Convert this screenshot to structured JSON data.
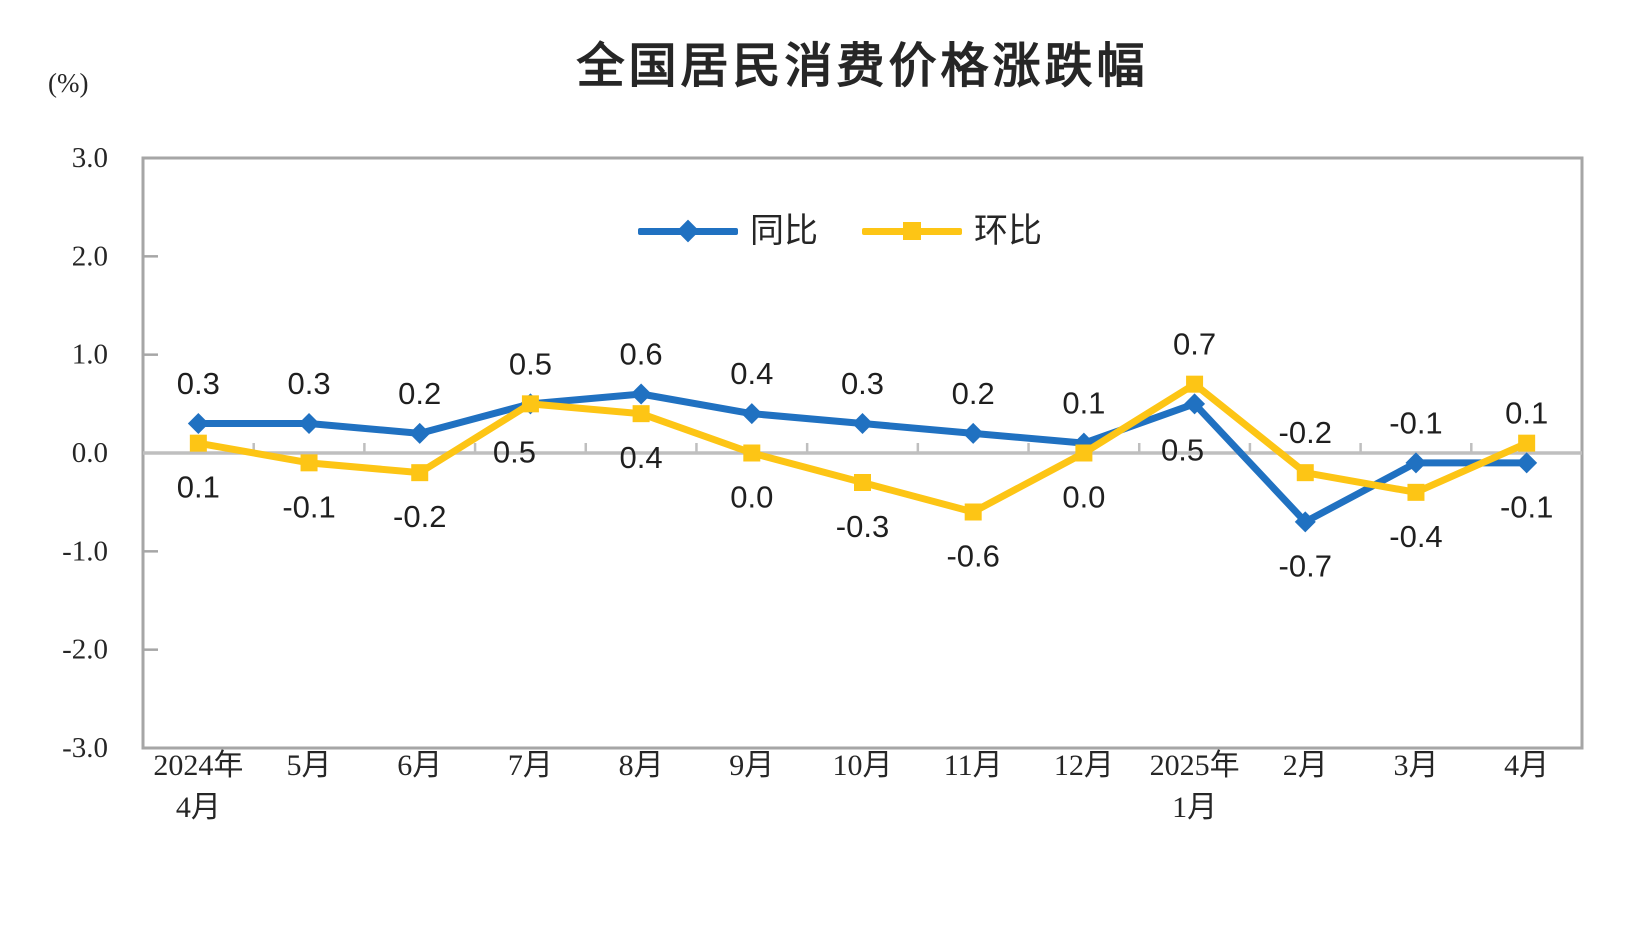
{
  "chart_data": {
    "type": "line",
    "title": "全国居民消费价格涨跌幅",
    "ylabel_unit": "(%)",
    "xlabel": "",
    "ylim": [
      -3.0,
      3.0
    ],
    "ytick_labels": [
      "3.0",
      "2.0",
      "1.0",
      "0.0",
      "-1.0",
      "-2.0",
      "-3.0"
    ],
    "ytick_values": [
      3.0,
      2.0,
      1.0,
      0.0,
      -1.0,
      -2.0,
      -3.0
    ],
    "grid": "zero-line-only",
    "legend_position": "top-center-inside",
    "axis_color": "#A6A6A6",
    "zero_line_color": "#BFBFBF",
    "text_color": "#262626",
    "categories": [
      [
        "2024年",
        "4月"
      ],
      [
        "5月"
      ],
      [
        "6月"
      ],
      [
        "7月"
      ],
      [
        "8月"
      ],
      [
        "9月"
      ],
      [
        "10月"
      ],
      [
        "11月"
      ],
      [
        "12月"
      ],
      [
        "2025年",
        "1月"
      ],
      [
        "2月"
      ],
      [
        "3月"
      ],
      [
        "4月"
      ]
    ],
    "series": [
      {
        "name": "同比",
        "color": "#2071C1",
        "marker": "diamond",
        "values": [
          0.3,
          0.3,
          0.2,
          0.5,
          0.6,
          0.4,
          0.3,
          0.2,
          0.1,
          0.5,
          -0.7,
          -0.1,
          -0.1
        ],
        "labels": [
          "0.3",
          "0.3",
          "0.2",
          "0.5",
          "0.6",
          "0.4",
          "0.3",
          "0.2",
          "0.1",
          "0.5",
          "-0.7",
          "-0.1",
          "-0.1"
        ],
        "label_side": [
          "above",
          "above",
          "above",
          "above",
          "above",
          "above",
          "above",
          "above",
          "above",
          "below",
          "below",
          "above",
          "below"
        ],
        "label_offsets": {
          "9": {
            "dx": -12,
            "dy": 2
          }
        }
      },
      {
        "name": "环比",
        "color": "#FDC515",
        "marker": "square",
        "values": [
          0.1,
          -0.1,
          -0.2,
          0.5,
          0.4,
          0.0,
          -0.3,
          -0.6,
          0.0,
          0.7,
          -0.2,
          -0.4,
          0.1
        ],
        "labels": [
          "0.1",
          "-0.1",
          "-0.2",
          "0.5",
          "0.4",
          "0.0",
          "-0.3",
          "-0.6",
          "0.0",
          "0.7",
          "-0.2",
          "-0.4",
          "0.1"
        ],
        "label_side": [
          "below",
          "below",
          "below",
          "below",
          "below",
          "below",
          "below",
          "below",
          "below",
          "above",
          "above",
          "below",
          "above"
        ],
        "label_offsets": {
          "3": {
            "dx": -16,
            "dy": 4
          },
          "12": {
            "dy": 10
          }
        }
      }
    ]
  }
}
